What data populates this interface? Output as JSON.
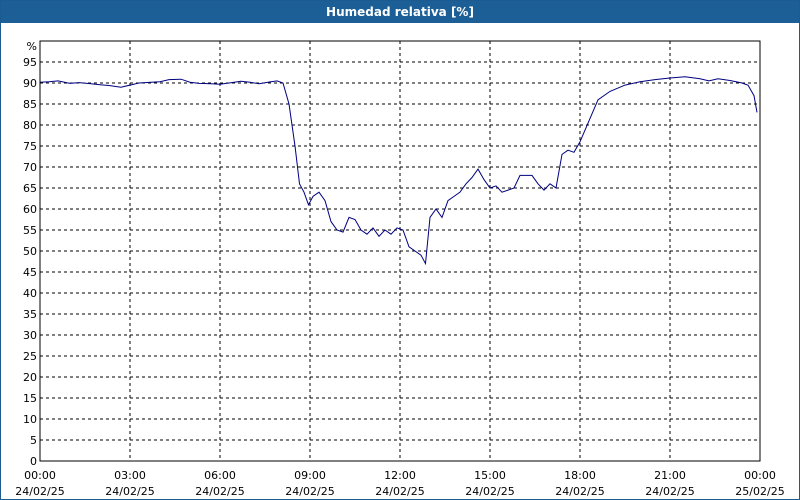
{
  "window": {
    "title": "Humedad relativa [%]"
  },
  "chart_data": {
    "type": "line",
    "title": "Humedad relativa [%]",
    "ylabel": "%",
    "xlabel": "",
    "ylim": [
      0,
      100
    ],
    "yticks": [
      0,
      5,
      10,
      15,
      20,
      25,
      30,
      35,
      40,
      45,
      50,
      55,
      60,
      65,
      70,
      75,
      80,
      85,
      90,
      95
    ],
    "xlim_hours": [
      0,
      24
    ],
    "grid": true,
    "line_color": "#000080",
    "xticks": [
      {
        "time": "00:00",
        "date": "24/02/25"
      },
      {
        "time": "03:00",
        "date": "24/02/25"
      },
      {
        "time": "06:00",
        "date": "24/02/25"
      },
      {
        "time": "09:00",
        "date": "24/02/25"
      },
      {
        "time": "12:00",
        "date": "24/02/25"
      },
      {
        "time": "15:00",
        "date": "24/02/25"
      },
      {
        "time": "18:00",
        "date": "24/02/25"
      },
      {
        "time": "21:00",
        "date": "24/02/25"
      },
      {
        "time": "00:00",
        "date": "25/02/25"
      }
    ],
    "series": [
      {
        "x": [
          0,
          0.3,
          0.6,
          1.0,
          1.3,
          1.7,
          2.0,
          2.3,
          2.7,
          3.0,
          3.3,
          3.7,
          4.0,
          4.3,
          4.7,
          5.0,
          5.3,
          5.7,
          6.0,
          6.3,
          6.7,
          7.0,
          7.3,
          7.7,
          7.9,
          8.1,
          8.3,
          8.5,
          8.65,
          8.8,
          8.95,
          9.1,
          9.3,
          9.5,
          9.7,
          9.9,
          10.1,
          10.3,
          10.5,
          10.7,
          10.9,
          11.1,
          11.3,
          11.5,
          11.7,
          11.9,
          12.1,
          12.3,
          12.5,
          12.7,
          12.85,
          13.0,
          13.2,
          13.4,
          13.6,
          13.8,
          14.0,
          14.2,
          14.4,
          14.6,
          14.8,
          15.0,
          15.2,
          15.4,
          15.6,
          15.8,
          16.0,
          16.2,
          16.4,
          16.6,
          16.8,
          17.0,
          17.2,
          17.4,
          17.6,
          17.8,
          18.0,
          18.3,
          18.6,
          19.0,
          19.5,
          20.0,
          20.5,
          21.0,
          21.5,
          22.0,
          22.3,
          22.6,
          23.0,
          23.4,
          23.6,
          23.8,
          23.9
        ],
        "y": [
          90.2,
          90.3,
          90.5,
          89.9,
          90.1,
          89.8,
          89.6,
          89.4,
          89.0,
          89.5,
          90.0,
          90.2,
          90.3,
          90.8,
          90.9,
          90.2,
          89.9,
          89.8,
          89.7,
          90.0,
          90.4,
          90.2,
          89.8,
          90.3,
          90.5,
          90.0,
          85.0,
          75.0,
          66.0,
          64.0,
          61.0,
          63.0,
          64.0,
          62.0,
          57.0,
          55.0,
          54.5,
          58.0,
          57.5,
          55.0,
          54.0,
          55.5,
          53.5,
          55.0,
          54.0,
          55.5,
          55.0,
          51.0,
          50.0,
          49.0,
          47.0,
          58.0,
          60.0,
          58.0,
          62.0,
          63.0,
          64.0,
          66.0,
          67.5,
          69.5,
          67.0,
          65.0,
          65.5,
          64.0,
          64.5,
          65.0,
          68.0,
          68.0,
          68.0,
          66.0,
          64.5,
          66.0,
          65.0,
          73.0,
          74.0,
          73.5,
          76.0,
          81.0,
          86.0,
          88.0,
          89.5,
          90.3,
          90.8,
          91.2,
          91.5,
          91.0,
          90.5,
          91.0,
          90.6,
          90.0,
          89.5,
          87.0,
          83.0
        ]
      }
    ]
  }
}
